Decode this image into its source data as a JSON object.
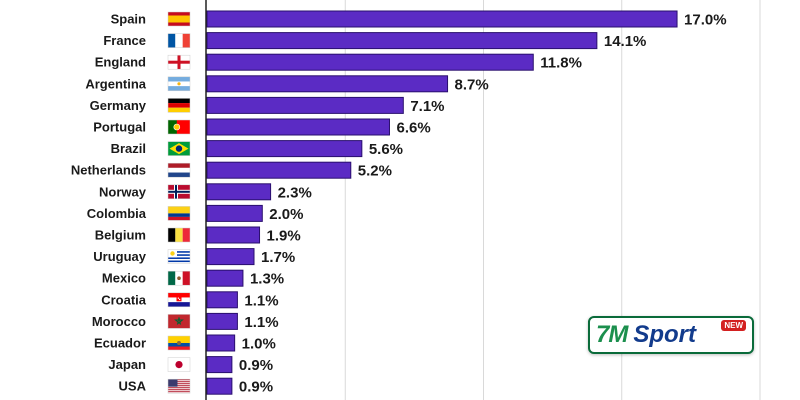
{
  "chart_data": {
    "type": "bar",
    "orientation": "horizontal",
    "categories": [
      "Spain",
      "France",
      "England",
      "Argentina",
      "Germany",
      "Portugal",
      "Brazil",
      "Netherlands",
      "Norway",
      "Colombia",
      "Belgium",
      "Uruguay",
      "Mexico",
      "Croatia",
      "Morocco",
      "Ecuador",
      "Japan",
      "USA"
    ],
    "values": [
      17.0,
      14.1,
      11.8,
      8.7,
      7.1,
      6.6,
      5.6,
      5.2,
      2.3,
      2.0,
      1.9,
      1.7,
      1.3,
      1.1,
      1.1,
      1.0,
      0.9,
      0.9
    ],
    "value_labels": [
      "17.0%",
      "14.1%",
      "11.8%",
      "8.7%",
      "7.1%",
      "6.6%",
      "5.6%",
      "5.2%",
      "2.3%",
      "2.0%",
      "1.9%",
      "1.7%",
      "1.3%",
      "1.1%",
      "1.1%",
      "1.0%",
      "0.9%",
      "0.9%"
    ],
    "flags": [
      "spain-flag",
      "france-flag",
      "england-flag",
      "argentina-flag",
      "germany-flag",
      "portugal-flag",
      "brazil-flag",
      "netherlands-flag",
      "norway-flag",
      "colombia-flag",
      "belgium-flag",
      "uruguay-flag",
      "mexico-flag",
      "croatia-flag",
      "morocco-flag",
      "ecuador-flag",
      "japan-flag",
      "usa-flag"
    ],
    "xlim": [
      0,
      20
    ],
    "grid": true,
    "bar_color": "#5b2bc4",
    "title": "",
    "xlabel": "",
    "ylabel": ""
  },
  "logo": {
    "brand_7m": "7M",
    "brand_sport": "Sport",
    "badge": "NEW"
  }
}
